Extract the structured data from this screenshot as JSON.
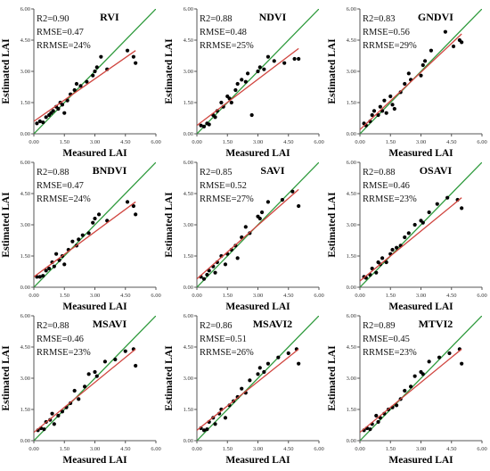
{
  "common": {
    "xlabel": "Measured LAI",
    "ylabel": "Estimated LAI",
    "ticks": [
      0.0,
      1.5,
      3.0,
      4.5,
      6.0
    ],
    "tick_labels": [
      "0.00",
      "1.50",
      "3.00",
      "4.50",
      "6.00"
    ],
    "xlim": [
      0,
      6
    ],
    "ylim": [
      0,
      6
    ],
    "colors": {
      "one_to_one": "#2e9a3c",
      "fit": "#d0453f",
      "points": "#000000",
      "axis": "#555555"
    }
  },
  "chart_data": [
    {
      "type": "scatter",
      "title": "RVI",
      "stats": {
        "r2": "R2=0.90",
        "rmse": "RMSE=0.47",
        "rrmse": "RRMSE=24%"
      },
      "fit_line": {
        "x": [
          0.0,
          5.0
        ],
        "y": [
          0.6,
          4.0
        ]
      },
      "one_to_one": {
        "x": [
          0,
          6
        ],
        "y": [
          0,
          6
        ]
      },
      "x": [
        0.15,
        0.3,
        0.45,
        0.6,
        0.75,
        0.85,
        0.95,
        1.1,
        1.2,
        1.3,
        1.4,
        1.5,
        1.65,
        1.8,
        2.0,
        2.1,
        2.3,
        2.6,
        2.9,
        3.0,
        3.1,
        3.3,
        3.6,
        4.6,
        4.9,
        5.0
      ],
      "y": [
        0.5,
        0.6,
        0.55,
        0.8,
        0.9,
        1.0,
        1.1,
        1.3,
        1.2,
        1.5,
        1.4,
        1.0,
        1.6,
        1.9,
        2.1,
        2.4,
        2.3,
        2.5,
        2.8,
        3.0,
        3.2,
        3.7,
        3.1,
        4.0,
        3.7,
        3.4
      ]
    },
    {
      "type": "scatter",
      "title": "NDVI",
      "stats": {
        "r2": "R2=0.88",
        "rmse": "RMSE=0.48",
        "rrmse": "RRMSE=25%"
      },
      "fit_line": {
        "x": [
          0.0,
          5.0
        ],
        "y": [
          0.4,
          4.1
        ]
      },
      "one_to_one": {
        "x": [
          0,
          6
        ],
        "y": [
          0,
          6
        ]
      },
      "x": [
        0.2,
        0.35,
        0.5,
        0.6,
        0.8,
        0.9,
        1.0,
        1.2,
        1.3,
        1.5,
        1.6,
        1.7,
        1.9,
        2.0,
        2.2,
        2.4,
        2.5,
        2.7,
        3.0,
        3.1,
        3.3,
        3.5,
        3.8,
        4.3,
        4.8,
        5.0
      ],
      "y": [
        0.4,
        0.35,
        0.5,
        0.45,
        0.9,
        0.8,
        1.1,
        1.5,
        1.3,
        1.8,
        1.7,
        1.5,
        2.1,
        2.4,
        2.6,
        2.5,
        2.9,
        0.9,
        3.0,
        3.2,
        3.1,
        3.7,
        3.5,
        3.4,
        3.6,
        3.6
      ]
    },
    {
      "type": "scatter",
      "title": "GNDVI",
      "stats": {
        "r2": "R2=0.83",
        "rmse": "RMSE=0.56",
        "rrmse": "RRMSE=29%"
      },
      "fit_line": {
        "x": [
          0.0,
          5.0
        ],
        "y": [
          0.2,
          4.8
        ]
      },
      "one_to_one": {
        "x": [
          0,
          6
        ],
        "y": [
          0,
          6
        ]
      },
      "x": [
        0.2,
        0.3,
        0.5,
        0.6,
        0.7,
        0.9,
        1.0,
        1.1,
        1.2,
        1.3,
        1.5,
        1.6,
        1.7,
        2.0,
        2.2,
        2.4,
        2.5,
        3.0,
        3.1,
        3.2,
        3.5,
        4.2,
        4.6,
        4.9,
        5.0
      ],
      "y": [
        0.5,
        0.4,
        0.6,
        0.9,
        1.1,
        0.9,
        1.3,
        1.1,
        1.6,
        1.0,
        1.8,
        1.4,
        1.2,
        2.0,
        2.4,
        2.9,
        2.6,
        2.8,
        3.3,
        3.5,
        4.0,
        4.9,
        4.2,
        4.5,
        4.4
      ]
    },
    {
      "type": "scatter",
      "title": "BNDVI",
      "stats": {
        "r2": "R2=0.88",
        "rmse": "RMSE=0.47",
        "rrmse": "RRMSE=24%"
      },
      "fit_line": {
        "x": [
          0.0,
          5.0
        ],
        "y": [
          0.5,
          4.1
        ]
      },
      "one_to_one": {
        "x": [
          0,
          6
        ],
        "y": [
          0,
          6
        ]
      },
      "x": [
        0.15,
        0.3,
        0.45,
        0.6,
        0.75,
        0.9,
        1.0,
        1.1,
        1.25,
        1.4,
        1.5,
        1.7,
        1.9,
        2.1,
        2.2,
        2.4,
        2.7,
        2.9,
        3.0,
        3.2,
        3.6,
        4.6,
        4.9,
        5.0
      ],
      "y": [
        0.5,
        0.5,
        0.55,
        0.8,
        0.9,
        1.2,
        1.0,
        1.6,
        1.3,
        1.5,
        1.1,
        1.8,
        2.2,
        2.0,
        2.3,
        2.5,
        2.6,
        3.1,
        3.3,
        3.5,
        3.2,
        4.1,
        3.9,
        3.5
      ]
    },
    {
      "type": "scatter",
      "title": "SAVI",
      "stats": {
        "r2": "R2=0.85",
        "rmse": "RMSE=0.52",
        "rrmse": "RRMSE=27%"
      },
      "fit_line": {
        "x": [
          0.0,
          5.0
        ],
        "y": [
          0.4,
          4.7
        ]
      },
      "one_to_one": {
        "x": [
          0,
          6
        ],
        "y": [
          0,
          6
        ]
      },
      "x": [
        0.2,
        0.35,
        0.5,
        0.6,
        0.8,
        0.9,
        1.0,
        1.2,
        1.4,
        1.5,
        1.7,
        1.9,
        2.0,
        2.2,
        2.4,
        2.6,
        3.0,
        3.1,
        3.2,
        3.5,
        4.2,
        4.7,
        5.0
      ],
      "y": [
        0.5,
        0.4,
        0.6,
        0.8,
        1.0,
        0.7,
        1.2,
        1.5,
        1.1,
        1.6,
        1.8,
        2.0,
        1.4,
        2.4,
        2.9,
        2.6,
        3.4,
        3.3,
        3.6,
        4.1,
        4.2,
        4.6,
        3.9
      ]
    },
    {
      "type": "scatter",
      "title": "OSAVI",
      "stats": {
        "r2": "R2=0.88",
        "rmse": "RMSE=0.46",
        "rrmse": "RRMSE=23%"
      },
      "fit_line": {
        "x": [
          0.0,
          5.0
        ],
        "y": [
          0.3,
          4.3
        ]
      },
      "one_to_one": {
        "x": [
          0,
          6
        ],
        "y": [
          0,
          6
        ]
      },
      "x": [
        0.2,
        0.3,
        0.5,
        0.6,
        0.8,
        0.9,
        1.0,
        1.1,
        1.3,
        1.5,
        1.6,
        1.8,
        2.0,
        2.2,
        2.4,
        2.7,
        3.0,
        3.1,
        3.4,
        3.8,
        4.3,
        4.8,
        5.0
      ],
      "y": [
        0.5,
        0.45,
        0.6,
        0.9,
        0.7,
        1.2,
        1.1,
        1.4,
        1.2,
        1.6,
        1.8,
        1.9,
        2.0,
        2.4,
        2.6,
        3.0,
        3.2,
        3.1,
        3.6,
        4.0,
        4.3,
        4.2,
        3.8
      ]
    },
    {
      "type": "scatter",
      "title": "MSAVI",
      "stats": {
        "r2": "R2=0.88",
        "rmse": "RMSE=0.46",
        "rrmse": "RRMSE=23%"
      },
      "fit_line": {
        "x": [
          0.0,
          5.0
        ],
        "y": [
          0.4,
          4.4
        ]
      },
      "one_to_one": {
        "x": [
          0,
          6
        ],
        "y": [
          0,
          6
        ]
      },
      "x": [
        0.2,
        0.35,
        0.5,
        0.6,
        0.8,
        0.9,
        1.0,
        1.2,
        1.4,
        1.6,
        1.8,
        2.0,
        2.2,
        2.5,
        2.7,
        3.0,
        3.1,
        3.5,
        4.0,
        4.5,
        4.9,
        5.0
      ],
      "y": [
        0.5,
        0.6,
        0.55,
        0.9,
        1.0,
        1.3,
        0.8,
        1.2,
        1.4,
        1.6,
        1.8,
        2.4,
        2.0,
        2.6,
        3.2,
        3.3,
        3.1,
        3.8,
        3.9,
        4.3,
        4.4,
        3.6
      ]
    },
    {
      "type": "scatter",
      "title": "MSAVI2",
      "stats": {
        "r2": "R2=0.86",
        "rmse": "RMSE=0.51",
        "rrmse": "RRMSE=26%"
      },
      "fit_line": {
        "x": [
          0.0,
          5.0
        ],
        "y": [
          0.5,
          4.4
        ]
      },
      "one_to_one": {
        "x": [
          0,
          6
        ],
        "y": [
          0,
          6
        ]
      },
      "x": [
        0.2,
        0.35,
        0.5,
        0.6,
        0.8,
        0.9,
        1.1,
        1.2,
        1.4,
        1.6,
        1.8,
        2.0,
        2.2,
        2.4,
        2.6,
        3.0,
        3.1,
        3.3,
        3.5,
        4.0,
        4.5,
        4.9,
        5.0
      ],
      "y": [
        0.6,
        0.5,
        0.55,
        0.9,
        1.1,
        0.8,
        1.3,
        1.5,
        1.1,
        1.7,
        1.9,
        2.1,
        2.5,
        2.3,
        2.9,
        3.2,
        3.5,
        3.3,
        3.7,
        4.0,
        4.2,
        4.4,
        3.7
      ]
    },
    {
      "type": "scatter",
      "title": "MTVI2",
      "stats": {
        "r2": "R2=0.89",
        "rmse": "RMSE=0.45",
        "rrmse": "RRMSE=23%"
      },
      "fit_line": {
        "x": [
          0.0,
          5.0
        ],
        "y": [
          0.4,
          4.4
        ]
      },
      "one_to_one": {
        "x": [
          0,
          6
        ],
        "y": [
          0,
          6
        ]
      },
      "x": [
        0.2,
        0.35,
        0.5,
        0.6,
        0.8,
        0.9,
        1.0,
        1.2,
        1.4,
        1.6,
        1.8,
        2.0,
        2.2,
        2.5,
        2.7,
        3.0,
        3.1,
        3.4,
        3.9,
        4.4,
        4.9,
        5.0
      ],
      "y": [
        0.5,
        0.6,
        0.55,
        0.8,
        1.2,
        0.9,
        1.1,
        1.3,
        1.5,
        1.6,
        1.7,
        2.0,
        2.4,
        2.6,
        3.1,
        3.3,
        3.2,
        3.8,
        4.0,
        4.2,
        4.4,
        3.7
      ]
    }
  ]
}
